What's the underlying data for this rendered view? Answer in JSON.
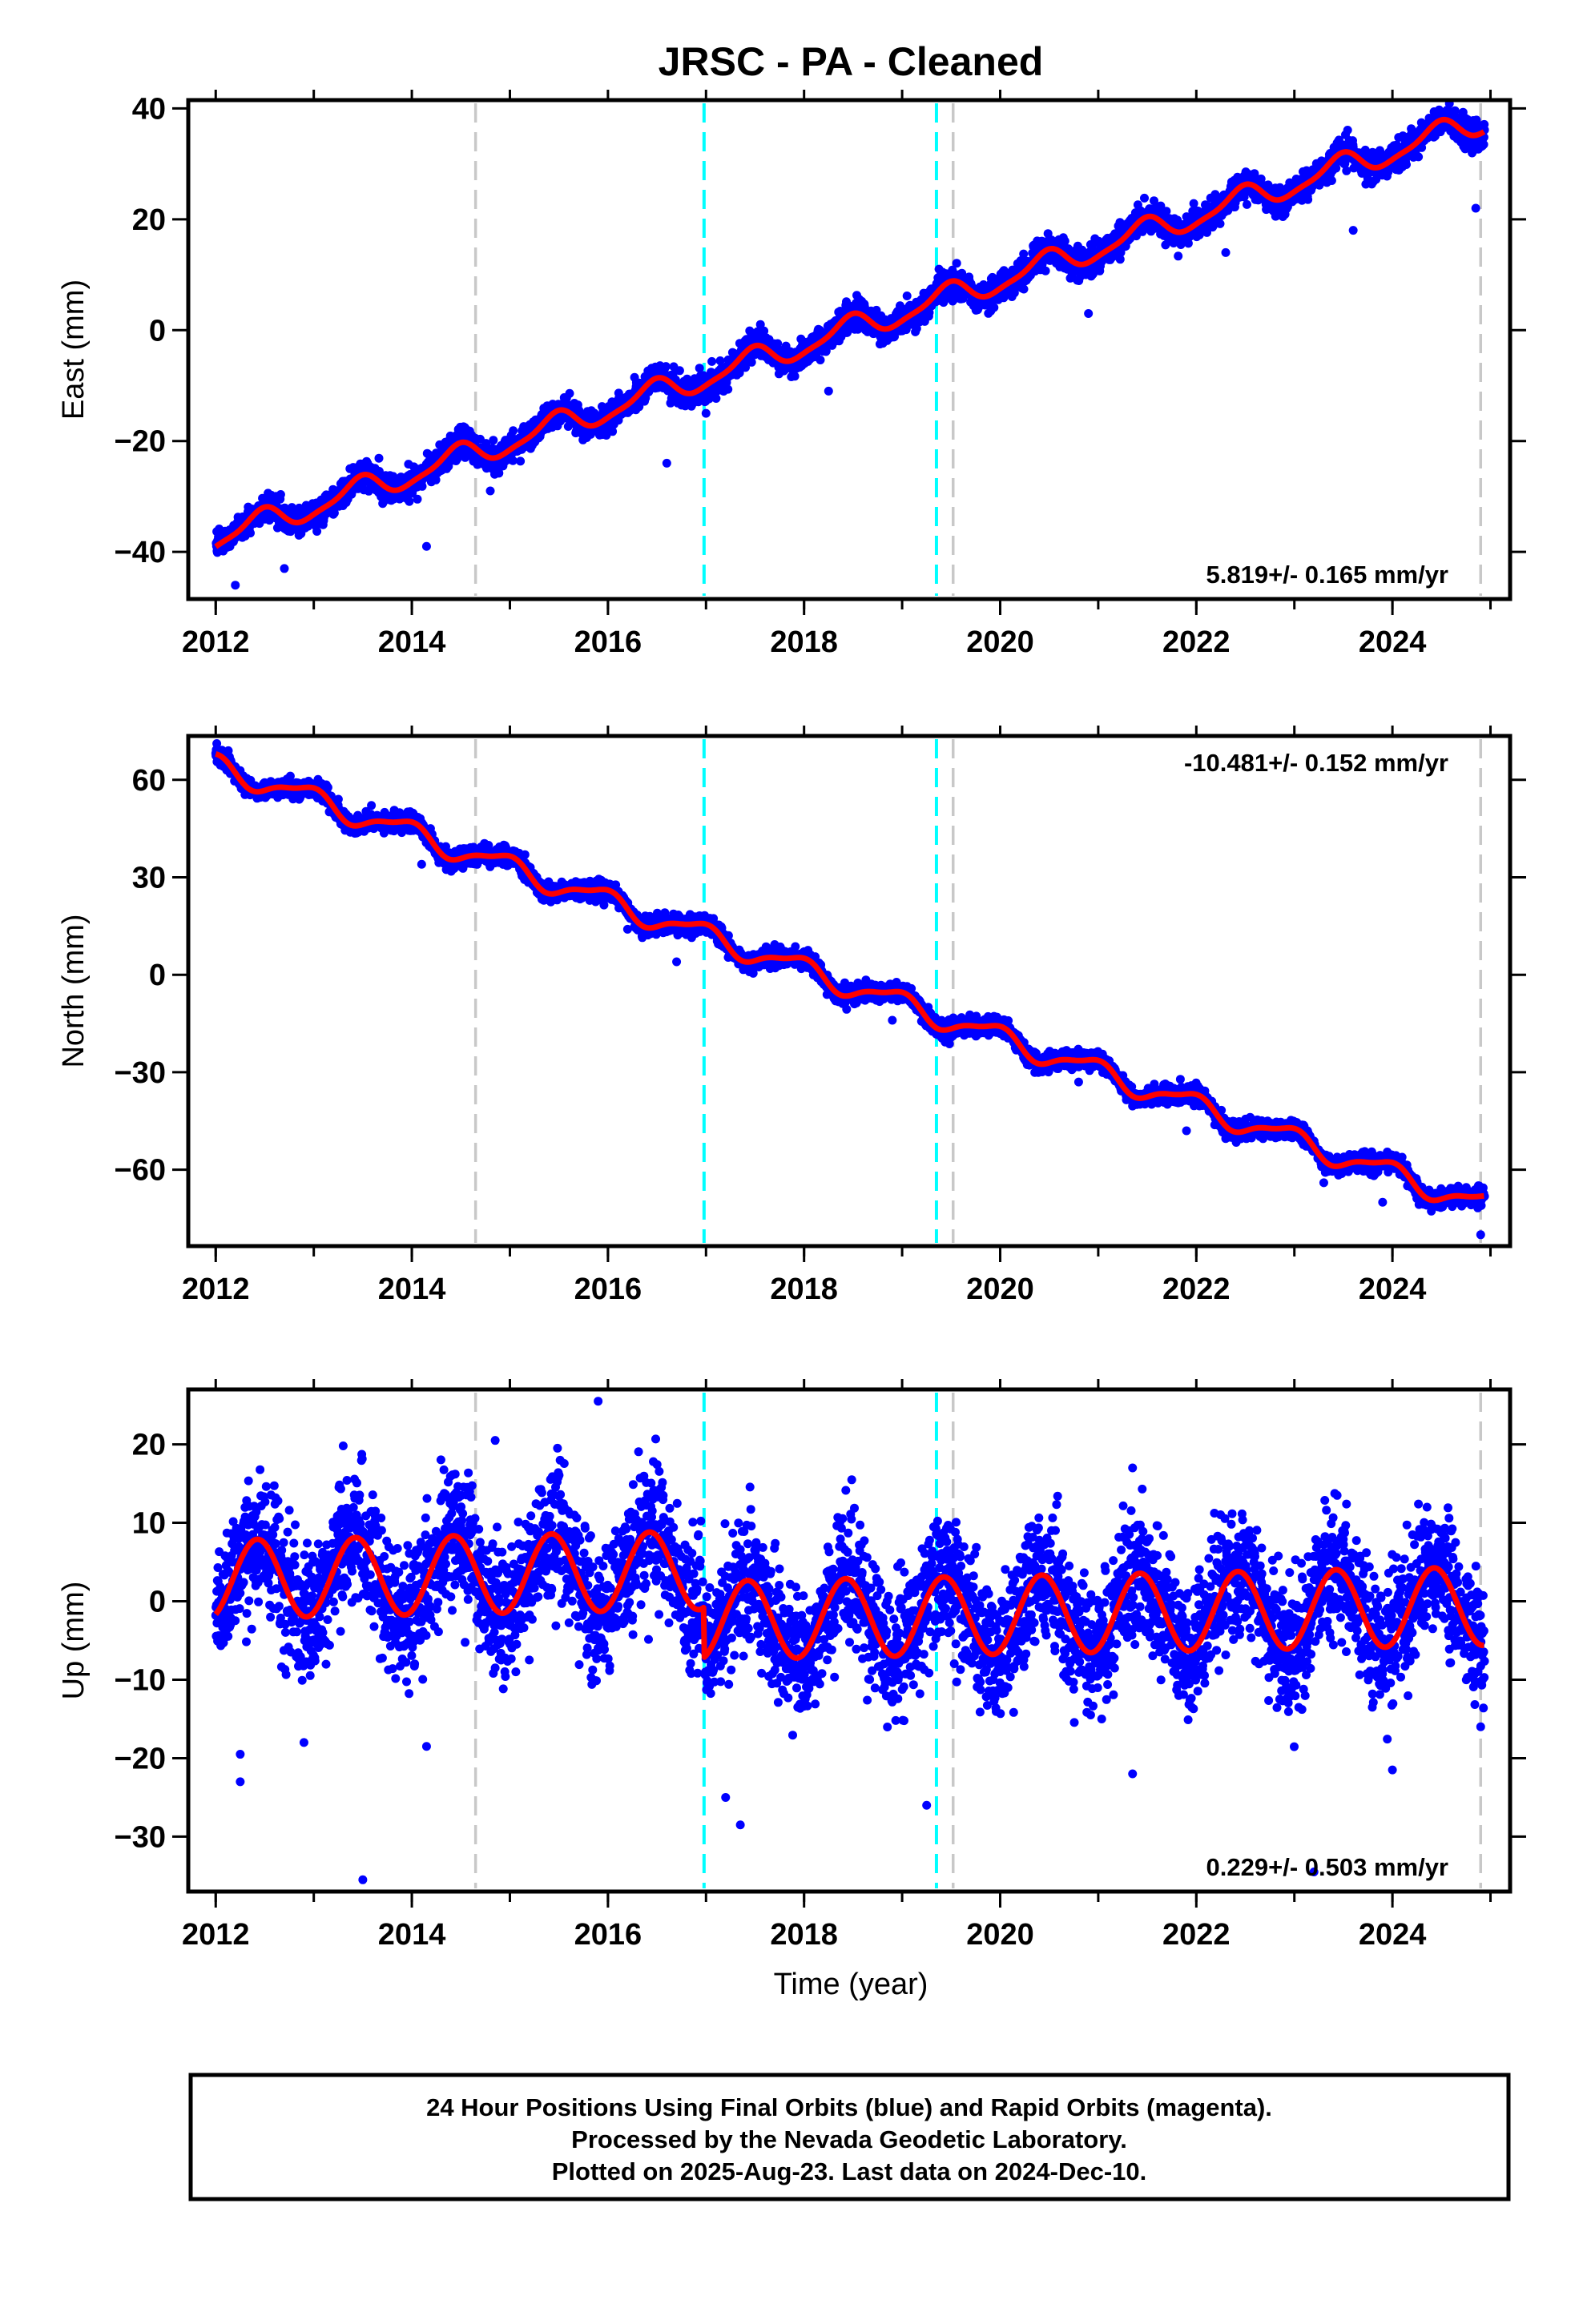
{
  "title": "JRSC  - PA - Cleaned",
  "colors": {
    "points": "#0000ff",
    "model": "#ff0000",
    "equipment_change": "#c8c8c8",
    "earthquake": "#00ffff",
    "frame": "#000000"
  },
  "x_axis": {
    "label": "Time (year)",
    "xlim": [
      2011.72,
      2025.2
    ],
    "ticks": [
      2012,
      2014,
      2016,
      2018,
      2020,
      2022,
      2024
    ],
    "minor_ticks": [
      2012,
      2013,
      2014,
      2015,
      2016,
      2017,
      2018,
      2019,
      2020,
      2021,
      2022,
      2023,
      2024,
      2025
    ]
  },
  "vertical_lines": [
    {
      "x": 2014.65,
      "kind": "equipment_change"
    },
    {
      "x": 2016.98,
      "kind": "earthquake"
    },
    {
      "x": 2019.35,
      "kind": "earthquake"
    },
    {
      "x": 2019.52,
      "kind": "equipment_change"
    },
    {
      "x": 2024.9,
      "kind": "equipment_change"
    }
  ],
  "chart_data": [
    {
      "type": "scatter",
      "component": "east",
      "ylabel": "East (mm)",
      "ylim": [
        -48.5,
        41.5
      ],
      "yticks": [
        -40,
        -20,
        0,
        20,
        40
      ],
      "rate_label": "5.819+/- 0.165 mm/yr",
      "rate_position": "bottom-right",
      "data_start": 2012.0,
      "data_end": 2024.94,
      "trend": {
        "intercept_at_2012": -37.5,
        "rate_mm_per_yr": 5.82
      },
      "seasonal": {
        "annual_amplitude": 2.2,
        "annual_phase": 5.0,
        "semiannual_amplitude": 0.6,
        "semiannual_phase": 1.2
      },
      "offsets": [],
      "scatter_sd": 1.3,
      "series": [
        {
          "name": "",
          "kind": "points",
          "x_range": [
            2012.0,
            2024.94
          ],
          "y_range": [
            -46,
            39
          ]
        },
        {
          "name": "",
          "kind": "model",
          "x_range": [
            2012.0,
            2024.94
          ],
          "y_range": [
            -40,
            38.5
          ]
        }
      ],
      "outliers": [
        {
          "x": 2012.2,
          "y": -46
        },
        {
          "x": 2012.7,
          "y": -43
        },
        {
          "x": 2014.15,
          "y": -39
        },
        {
          "x": 2014.8,
          "y": -29
        },
        {
          "x": 2016.6,
          "y": -24
        },
        {
          "x": 2017.0,
          "y": -15
        },
        {
          "x": 2018.25,
          "y": -11
        },
        {
          "x": 2020.9,
          "y": 3
        },
        {
          "x": 2022.3,
          "y": 14
        },
        {
          "x": 2023.6,
          "y": 18
        },
        {
          "x": 2024.85,
          "y": 22
        }
      ]
    },
    {
      "type": "scatter",
      "component": "north",
      "ylabel": "North (mm)",
      "ylim": [
        -83.5,
        73.5
      ],
      "yticks": [
        -60,
        -30,
        0,
        30,
        60
      ],
      "rate_label": "-10.481+/- 0.152 mm/yr",
      "rate_position": "top-right",
      "data_start": 2012.0,
      "data_end": 2024.94,
      "trend": {
        "intercept_at_2012": 64.5,
        "rate_mm_per_yr": -10.48
      },
      "seasonal": {
        "annual_amplitude": 3.3,
        "annual_phase": 2.0,
        "semiannual_amplitude": 1.0,
        "semiannual_phase": 0.5
      },
      "offsets": [],
      "scatter_sd": 1.4,
      "series": [
        {
          "name": "",
          "kind": "points",
          "x_range": [
            2012.0,
            2024.94
          ],
          "y_range": [
            -80,
            68
          ]
        },
        {
          "name": "",
          "kind": "model",
          "x_range": [
            2012.0,
            2024.94
          ],
          "y_range": [
            -72,
            67
          ]
        }
      ],
      "outliers": [
        {
          "x": 2014.1,
          "y": 34
        },
        {
          "x": 2016.2,
          "y": 14
        },
        {
          "x": 2016.7,
          "y": 4
        },
        {
          "x": 2018.9,
          "y": -14
        },
        {
          "x": 2020.8,
          "y": -33
        },
        {
          "x": 2021.9,
          "y": -48
        },
        {
          "x": 2023.3,
          "y": -64
        },
        {
          "x": 2023.9,
          "y": -70
        },
        {
          "x": 2024.9,
          "y": -80
        }
      ]
    },
    {
      "type": "scatter",
      "component": "up",
      "ylabel": "Up (mm)",
      "ylim": [
        -37,
        27
      ],
      "yticks": [
        -30,
        -20,
        -10,
        0,
        10,
        20
      ],
      "rate_label": "0.229+/- 0.503 mm/yr",
      "rate_position": "bottom-right",
      "data_start": 2012.0,
      "data_end": 2024.94,
      "trend": {
        "intercept_at_2012": 2.8,
        "rate_mm_per_yr": 0.23
      },
      "seasonal": {
        "annual_amplitude": 5.0,
        "annual_phase": -1.1,
        "semiannual_amplitude": 0.0,
        "semiannual_phase": 0.0
      },
      "offsets": [
        {
          "x": 2016.98,
          "dy": -6.4
        },
        {
          "x": 2019.35,
          "dy": 0.0
        }
      ],
      "scatter_sd": 4.2,
      "series": [
        {
          "name": "",
          "kind": "points",
          "x_range": [
            2012.0,
            2024.94
          ],
          "y_range": [
            -36,
            25.5
          ]
        },
        {
          "name": "",
          "kind": "model",
          "x_range": [
            2012.0,
            2024.94
          ],
          "y_range": [
            -7.5,
            8.5
          ]
        }
      ],
      "outliers": [
        {
          "x": 2012.25,
          "y": -23
        },
        {
          "x": 2012.25,
          "y": -19.5
        },
        {
          "x": 2012.9,
          "y": -18
        },
        {
          "x": 2013.3,
          "y": 19.8
        },
        {
          "x": 2013.5,
          "y": -35.5
        },
        {
          "x": 2014.15,
          "y": -18.5
        },
        {
          "x": 2014.85,
          "y": 20.5
        },
        {
          "x": 2015.9,
          "y": 25.5
        },
        {
          "x": 2017.2,
          "y": -25
        },
        {
          "x": 2017.35,
          "y": -28.5
        },
        {
          "x": 2019.25,
          "y": -26
        },
        {
          "x": 2021.35,
          "y": 17
        },
        {
          "x": 2021.35,
          "y": -22
        },
        {
          "x": 2023.2,
          "y": -34.5
        },
        {
          "x": 2024.0,
          "y": -21.5
        },
        {
          "x": 2024.9,
          "y": -16
        }
      ]
    }
  ],
  "footer": {
    "line1": "24 Hour Positions Using Final Orbits (blue) and Rapid Orbits (magenta).",
    "line2": "Processed by the Nevada Geodetic Laboratory.",
    "line3": "Plotted on 2025-Aug-23. Last data on 2024-Dec-10."
  }
}
